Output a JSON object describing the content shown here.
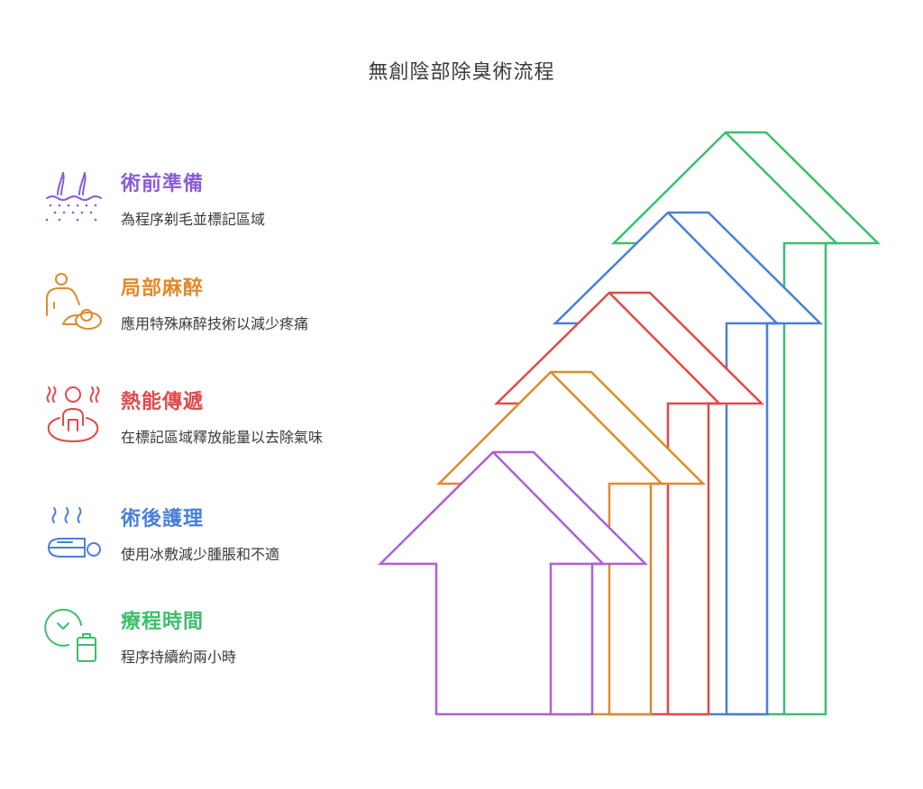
{
  "title": "無創陰部除臭術流程",
  "steps": [
    {
      "title": "術前準備",
      "description": "為程序剃毛並標記區域",
      "color": "#8a5cd8",
      "icon": "hair-removal-icon"
    },
    {
      "title": "局部麻醉",
      "description": "應用特殊麻醉技術以減少疼痛",
      "color": "#e08a2c",
      "icon": "patient-care-icon"
    },
    {
      "title": "熱能傳遞",
      "description": "在標記區域釋放能量以去除氣味",
      "color": "#e04a4a",
      "icon": "heat-treatment-icon"
    },
    {
      "title": "術後護理",
      "description": "使用冰敷減少腫脹和不適",
      "color": "#4a7fd8",
      "icon": "cold-compress-icon"
    },
    {
      "title": "療程時間",
      "description": "程序持續約兩小時",
      "color": "#3cbf6c",
      "icon": "clock-battery-icon"
    }
  ],
  "arrow_colors": [
    "#b05fd6",
    "#e08a2c",
    "#e04a4a",
    "#4a7fd8",
    "#3cbf6c"
  ]
}
